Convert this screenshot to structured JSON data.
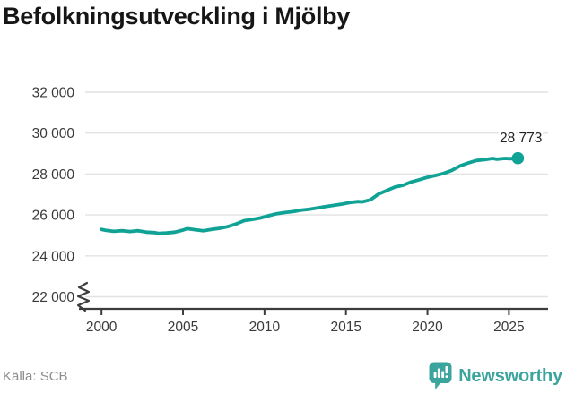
{
  "title": "Befolkningsutveckling i Mjölby",
  "source": "Källa: SCB",
  "brand": {
    "name": "Newsworthy",
    "badge_icon": "newsworthy-bar-chart-badge-icon"
  },
  "colors": {
    "line": "#0fa295",
    "brand_teal": "#3ba49c",
    "gridline": "#e2e2e2",
    "axis": "#3d3d3d",
    "tick_text": "#3a3a3a",
    "title_text": "#161616",
    "source_text": "#8c8c8c"
  },
  "chart_data": {
    "type": "line",
    "title": "Befolkningsutveckling i Mjölby",
    "series_name": "Befolkning i Mjölby",
    "xlabel": "",
    "ylabel": "",
    "xlim": [
      1999.0,
      2027.4
    ],
    "ylim": [
      22000,
      32000
    ],
    "x_ticks": [
      2000,
      2005,
      2010,
      2015,
      2020,
      2025
    ],
    "x_tick_labels": [
      "2000",
      "2005",
      "2010",
      "2015",
      "2020",
      "2025"
    ],
    "y_ticks": [
      22000,
      24000,
      26000,
      28000,
      30000,
      32000
    ],
    "y_tick_labels": [
      "22 000",
      "24 000",
      "26 000",
      "28 000",
      "30 000",
      "32 000"
    ],
    "grid": "horizontal",
    "axis_break": true,
    "legend": "none",
    "last_value": 28773,
    "last_point_label": "28 773",
    "points": [
      [
        2000.0,
        25290
      ],
      [
        2000.25,
        25250
      ],
      [
        2000.75,
        25200
      ],
      [
        2001.25,
        25230
      ],
      [
        2001.75,
        25190
      ],
      [
        2002.25,
        25230
      ],
      [
        2002.75,
        25160
      ],
      [
        2003.25,
        25140
      ],
      [
        2003.5,
        25100
      ],
      [
        2004.0,
        25120
      ],
      [
        2004.5,
        25160
      ],
      [
        2005.0,
        25260
      ],
      [
        2005.25,
        25330
      ],
      [
        2005.75,
        25280
      ],
      [
        2006.25,
        25230
      ],
      [
        2006.75,
        25290
      ],
      [
        2007.25,
        25350
      ],
      [
        2007.75,
        25430
      ],
      [
        2008.25,
        25560
      ],
      [
        2008.75,
        25720
      ],
      [
        2009.25,
        25780
      ],
      [
        2009.75,
        25850
      ],
      [
        2010.25,
        25960
      ],
      [
        2010.75,
        26060
      ],
      [
        2011.25,
        26120
      ],
      [
        2011.75,
        26160
      ],
      [
        2012.25,
        26230
      ],
      [
        2012.75,
        26280
      ],
      [
        2013.25,
        26340
      ],
      [
        2013.75,
        26410
      ],
      [
        2014.25,
        26470
      ],
      [
        2014.75,
        26530
      ],
      [
        2015.25,
        26610
      ],
      [
        2015.75,
        26650
      ],
      [
        2016.0,
        26640
      ],
      [
        2016.5,
        26740
      ],
      [
        2017.0,
        27020
      ],
      [
        2017.5,
        27190
      ],
      [
        2018.0,
        27360
      ],
      [
        2018.5,
        27450
      ],
      [
        2019.0,
        27610
      ],
      [
        2019.5,
        27720
      ],
      [
        2020.0,
        27840
      ],
      [
        2020.5,
        27930
      ],
      [
        2021.0,
        28030
      ],
      [
        2021.5,
        28180
      ],
      [
        2022.0,
        28400
      ],
      [
        2022.5,
        28540
      ],
      [
        2023.0,
        28660
      ],
      [
        2023.5,
        28700
      ],
      [
        2024.0,
        28760
      ],
      [
        2024.25,
        28720
      ],
      [
        2024.75,
        28760
      ],
      [
        2025.1,
        28750
      ],
      [
        2025.55,
        28773
      ]
    ]
  }
}
